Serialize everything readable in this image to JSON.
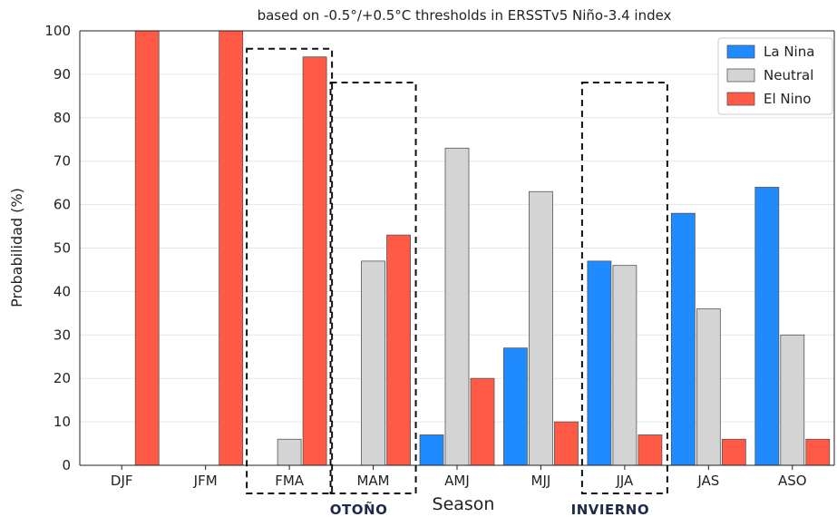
{
  "chart_data": {
    "type": "bar",
    "title": "based on -0.5°/+0.5°C thresholds in ERSSTv5 Niño-3.4 index",
    "xlabel": "Season",
    "ylabel": "Probabilidad (%)",
    "ylim": [
      0,
      100
    ],
    "yticks": [
      "0",
      "10",
      "20",
      "30",
      "40",
      "50",
      "60",
      "70",
      "80",
      "90",
      "100"
    ],
    "grid": true,
    "legend_position": "top-right",
    "categories": [
      "DJF",
      "JFM",
      "FMA",
      "MAM",
      "AMJ",
      "MJJ",
      "JJA",
      "JAS",
      "ASO"
    ],
    "series": [
      {
        "name": "La Nina",
        "color": "#1f8bff",
        "values": [
          0,
          0,
          0,
          0,
          7,
          27,
          47,
          58,
          64
        ]
      },
      {
        "name": "Neutral",
        "color": "#d4d4d4",
        "values": [
          0,
          0,
          6,
          47,
          73,
          63,
          46,
          36,
          30
        ]
      },
      {
        "name": "El Nino",
        "color": "#ff5a45",
        "values": [
          100,
          100,
          94,
          53,
          20,
          10,
          7,
          6,
          6
        ]
      }
    ],
    "annotations": [
      {
        "category": "FMA",
        "label": ""
      },
      {
        "category": "MAM",
        "label": "OTOÑO"
      },
      {
        "category": "JJA",
        "label": "INVIERNO"
      }
    ]
  }
}
